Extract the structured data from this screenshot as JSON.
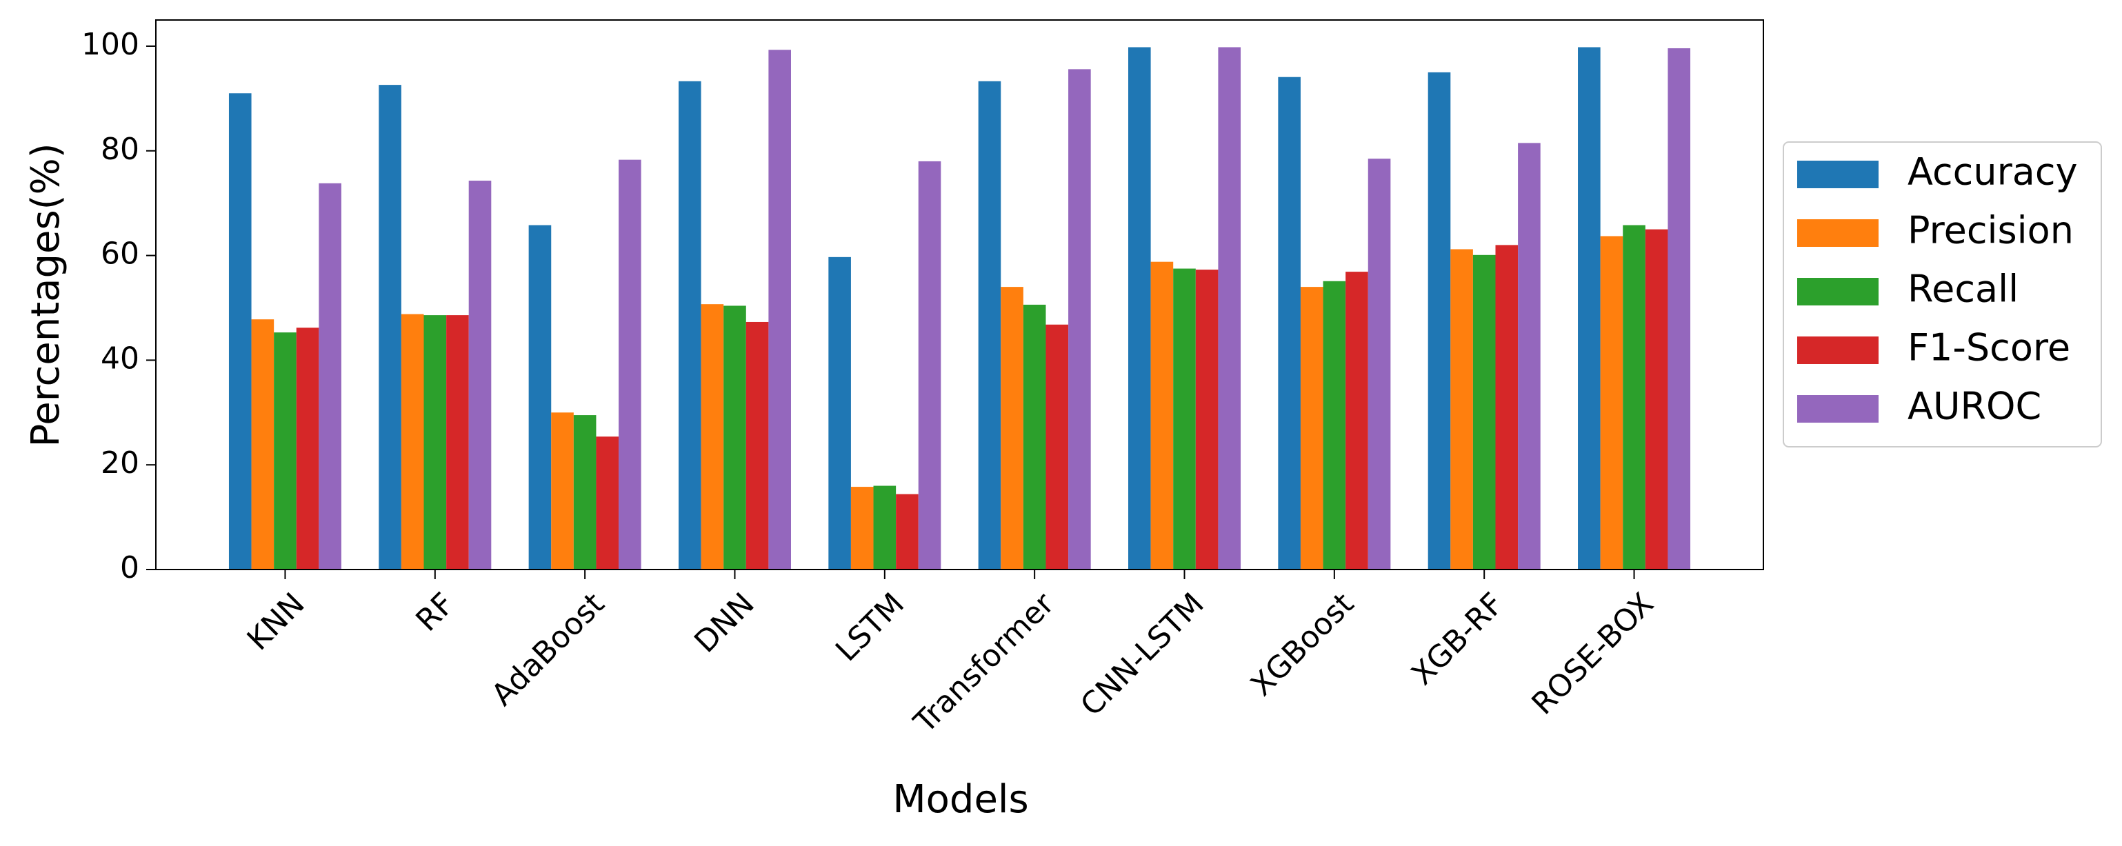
{
  "chart_data": {
    "type": "bar",
    "xlabel": "Models",
    "ylabel": "Percentages(%)",
    "categories": [
      "KNN",
      "RF",
      "AdaBoost",
      "DNN",
      "LSTM",
      "Transformer",
      "CNN-LSTM",
      "XGBoost",
      "XGB-RF",
      "ROSE-BOX"
    ],
    "series": [
      {
        "name": "Accuracy",
        "color": "#1f77b4",
        "values": [
          91,
          92.6,
          65.8,
          93.3,
          59.7,
          93.3,
          99.8,
          94.1,
          95,
          99.8
        ]
      },
      {
        "name": "Precision",
        "color": "#ff7f0e",
        "values": [
          47.8,
          48.8,
          30,
          50.7,
          15.8,
          54,
          58.8,
          54,
          61.2,
          63.7
        ]
      },
      {
        "name": "Recall",
        "color": "#2ca02c",
        "values": [
          45.3,
          48.6,
          29.5,
          50.4,
          16,
          50.6,
          57.5,
          55.1,
          60.1,
          65.8
        ]
      },
      {
        "name": "F1-Score",
        "color": "#d62728",
        "values": [
          46.2,
          48.6,
          25.4,
          47.3,
          14.4,
          46.8,
          57.3,
          56.9,
          62,
          65
        ]
      },
      {
        "name": "AUROC",
        "color": "#9467bd",
        "values": [
          73.8,
          74.3,
          78.3,
          99.3,
          78,
          95.6,
          99.8,
          78.5,
          81.5,
          99.6
        ]
      }
    ],
    "ylim": [
      0,
      105
    ],
    "yticks": [
      0,
      20,
      40,
      60,
      80,
      100
    ],
    "grid": false,
    "legend": "outside right"
  }
}
